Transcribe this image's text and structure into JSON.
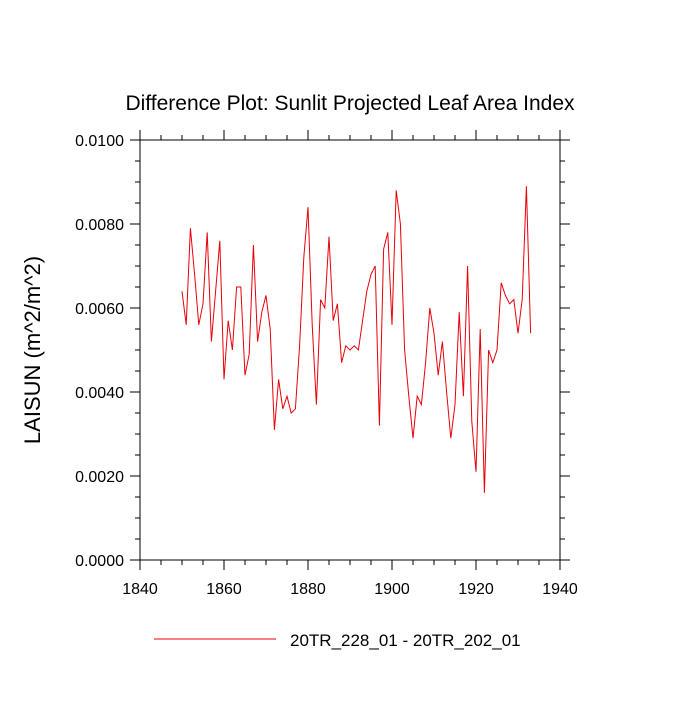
{
  "chart_data": {
    "type": "line",
    "title": "Difference Plot: Sunlit Projected Leaf Area Index",
    "xlabel": "",
    "ylabel": "LAISUN  (m^2/m^2)",
    "xlim": [
      1840,
      1940
    ],
    "ylim": [
      0.0,
      0.01
    ],
    "x_ticks": [
      1840,
      1860,
      1880,
      1900,
      1920,
      1940
    ],
    "x_tick_labels": [
      "1840",
      "1860",
      "1880",
      "1900",
      "1920",
      "1940"
    ],
    "y_ticks": [
      0.0,
      0.002,
      0.004,
      0.006,
      0.008,
      0.01
    ],
    "y_tick_labels": [
      "0.0000",
      "0.0020",
      "0.0040",
      "0.0060",
      "0.0080",
      "0.0100"
    ],
    "legend": {
      "placement": "bottom-center",
      "entries": [
        "20TR_228_01 - 20TR_202_01"
      ]
    },
    "series": [
      {
        "name": "20TR_228_01 - 20TR_202_01",
        "color": "#e8000b",
        "x": [
          1850,
          1851,
          1852,
          1853,
          1854,
          1855,
          1856,
          1857,
          1858,
          1859,
          1860,
          1861,
          1862,
          1863,
          1864,
          1865,
          1866,
          1867,
          1868,
          1869,
          1870,
          1871,
          1872,
          1873,
          1874,
          1875,
          1876,
          1877,
          1878,
          1879,
          1880,
          1881,
          1882,
          1883,
          1884,
          1885,
          1886,
          1887,
          1888,
          1889,
          1890,
          1891,
          1892,
          1893,
          1894,
          1895,
          1896,
          1897,
          1898,
          1899,
          1900,
          1901,
          1902,
          1903,
          1904,
          1905,
          1906,
          1907,
          1908,
          1909,
          1910,
          1911,
          1912,
          1913,
          1914,
          1915,
          1916,
          1917,
          1918,
          1919,
          1920,
          1921,
          1922,
          1923,
          1924,
          1925,
          1926,
          1927,
          1928,
          1929,
          1930,
          1931,
          1932,
          1933
        ],
        "values": [
          0.0064,
          0.0056,
          0.0079,
          0.0068,
          0.0056,
          0.0061,
          0.0078,
          0.0052,
          0.0064,
          0.0076,
          0.0043,
          0.0057,
          0.005,
          0.0065,
          0.0065,
          0.0044,
          0.0049,
          0.0075,
          0.0052,
          0.0059,
          0.0063,
          0.0055,
          0.0031,
          0.0043,
          0.0036,
          0.0039,
          0.0035,
          0.0036,
          0.0051,
          0.0072,
          0.0084,
          0.0056,
          0.0037,
          0.0062,
          0.006,
          0.0077,
          0.0057,
          0.0061,
          0.0047,
          0.0051,
          0.005,
          0.0051,
          0.005,
          0.0057,
          0.0064,
          0.0068,
          0.007,
          0.0032,
          0.0074,
          0.0078,
          0.0056,
          0.0088,
          0.008,
          0.005,
          0.0039,
          0.0029,
          0.0039,
          0.0037,
          0.0047,
          0.006,
          0.0054,
          0.0044,
          0.0052,
          0.004,
          0.0029,
          0.0037,
          0.0059,
          0.0039,
          0.007,
          0.0033,
          0.0021,
          0.0055,
          0.0016,
          0.005,
          0.0047,
          0.005,
          0.0066,
          0.0063,
          0.0061,
          0.0062,
          0.0054,
          0.0062,
          0.0089,
          0.0054
        ]
      }
    ]
  }
}
